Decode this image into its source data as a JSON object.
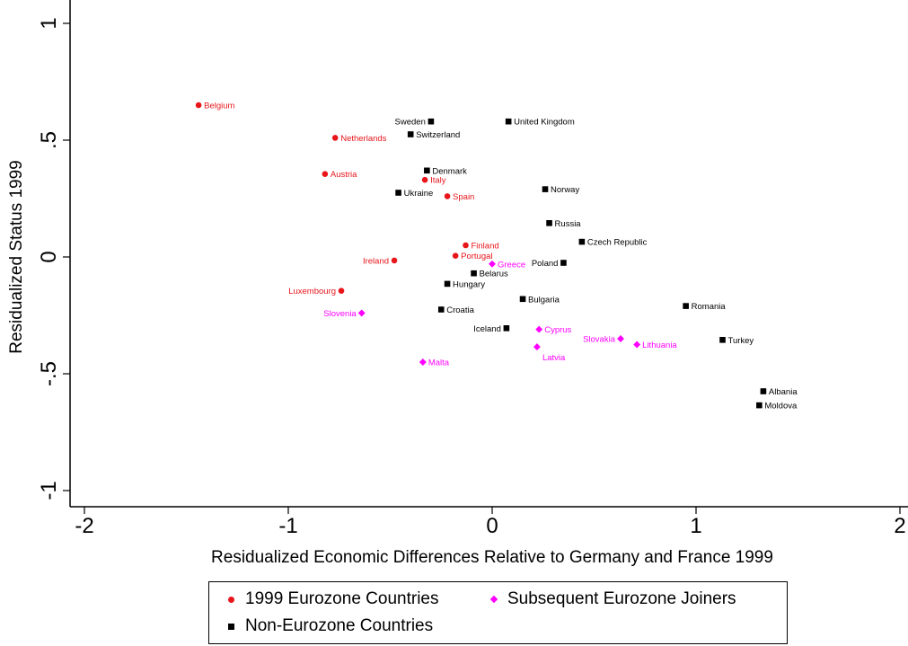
{
  "chart_data": {
    "type": "scatter",
    "xlabel": "Residualized Economic Differences Relative to Germany and France 1999",
    "ylabel": "Residualized Status 1999",
    "xlim": [
      -2,
      2
    ],
    "ylim": [
      -1,
      1
    ],
    "xticks": [
      -2,
      -1,
      0,
      1,
      2
    ],
    "xtick_labels": [
      "-2",
      "-1",
      "0",
      "1",
      "2"
    ],
    "yticks": [
      -1,
      -0.5,
      0,
      0.5,
      1
    ],
    "ytick_labels": [
      "-1",
      "-.5",
      "0",
      ".5",
      "1"
    ],
    "grid": false,
    "legend_position": "bottom",
    "series": [
      {
        "name": "1999 Eurozone Countries",
        "marker": "circle",
        "color": "#e8151b",
        "points": [
          {
            "label": "Belgium",
            "x": -1.44,
            "y": 0.65,
            "pos": "right"
          },
          {
            "label": "Netherlands",
            "x": -0.77,
            "y": 0.51,
            "pos": "right"
          },
          {
            "label": "Austria",
            "x": -0.82,
            "y": 0.355,
            "pos": "right"
          },
          {
            "label": "Italy",
            "x": -0.33,
            "y": 0.33,
            "pos": "right"
          },
          {
            "label": "Spain",
            "x": -0.22,
            "y": 0.26,
            "pos": "right"
          },
          {
            "label": "Finland",
            "x": -0.13,
            "y": 0.05,
            "pos": "right"
          },
          {
            "label": "Portugal",
            "x": -0.18,
            "y": 0.005,
            "pos": "right"
          },
          {
            "label": "Ireland",
            "x": -0.48,
            "y": -0.015,
            "pos": "left"
          },
          {
            "label": "Luxembourg",
            "x": -0.74,
            "y": -0.145,
            "pos": "left"
          }
        ]
      },
      {
        "name": "Subsequent Eurozone Joiners",
        "marker": "diamond",
        "color": "#ff00ff",
        "points": [
          {
            "label": "Greece",
            "x": 0.0,
            "y": -0.03,
            "pos": "right"
          },
          {
            "label": "Slovenia",
            "x": -0.64,
            "y": -0.24,
            "pos": "left"
          },
          {
            "label": "Cyprus",
            "x": 0.23,
            "y": -0.31,
            "pos": "right"
          },
          {
            "label": "Latvia",
            "x": 0.22,
            "y": -0.385,
            "pos": "below"
          },
          {
            "label": "Slovakia",
            "x": 0.63,
            "y": -0.35,
            "pos": "left"
          },
          {
            "label": "Lithuania",
            "x": 0.71,
            "y": -0.375,
            "pos": "right"
          },
          {
            "label": "Malta",
            "x": -0.34,
            "y": -0.45,
            "pos": "right"
          }
        ]
      },
      {
        "name": "Non-Eurozone Countries",
        "marker": "square",
        "color": "#000000",
        "points": [
          {
            "label": "Sweden",
            "x": -0.3,
            "y": 0.58,
            "pos": "left"
          },
          {
            "label": "United Kingdom",
            "x": 0.08,
            "y": 0.58,
            "pos": "right"
          },
          {
            "label": "Switzerland",
            "x": -0.4,
            "y": 0.525,
            "pos": "right"
          },
          {
            "label": "Denmark",
            "x": -0.32,
            "y": 0.37,
            "pos": "right"
          },
          {
            "label": "Ukraine",
            "x": -0.46,
            "y": 0.275,
            "pos": "right"
          },
          {
            "label": "Norway",
            "x": 0.26,
            "y": 0.29,
            "pos": "right"
          },
          {
            "label": "Russia",
            "x": 0.28,
            "y": 0.145,
            "pos": "right"
          },
          {
            "label": "Czech Republic",
            "x": 0.44,
            "y": 0.065,
            "pos": "right"
          },
          {
            "label": "Poland",
            "x": 0.35,
            "y": -0.025,
            "pos": "left"
          },
          {
            "label": "Belarus",
            "x": -0.09,
            "y": -0.07,
            "pos": "right"
          },
          {
            "label": "Hungary",
            "x": -0.22,
            "y": -0.115,
            "pos": "right"
          },
          {
            "label": "Bulgaria",
            "x": 0.15,
            "y": -0.18,
            "pos": "right"
          },
          {
            "label": "Croatia",
            "x": -0.25,
            "y": -0.225,
            "pos": "right"
          },
          {
            "label": "Iceland",
            "x": 0.07,
            "y": -0.305,
            "pos": "left"
          },
          {
            "label": "Romania",
            "x": 0.95,
            "y": -0.21,
            "pos": "right"
          },
          {
            "label": "Turkey",
            "x": 1.13,
            "y": -0.355,
            "pos": "right"
          },
          {
            "label": "Albania",
            "x": 1.33,
            "y": -0.575,
            "pos": "right"
          },
          {
            "label": "Moldova",
            "x": 1.31,
            "y": -0.635,
            "pos": "right"
          }
        ]
      }
    ]
  }
}
